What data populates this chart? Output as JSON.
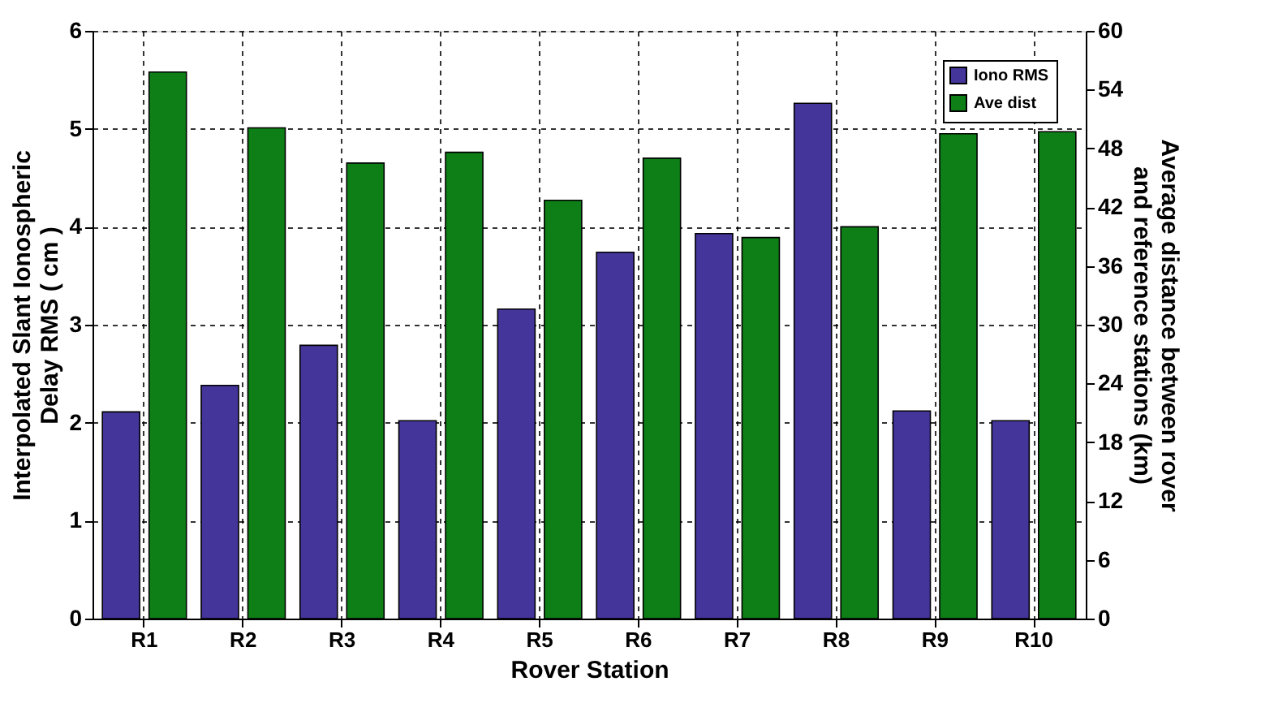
{
  "chart_data": {
    "type": "bar",
    "categories": [
      "R1",
      "R2",
      "R3",
      "R4",
      "R5",
      "R6",
      "R7",
      "R8",
      "R9",
      "R10"
    ],
    "series": [
      {
        "name": "Iono RMS",
        "color": "#44359b",
        "values": [
          2.11,
          2.38,
          2.79,
          2.02,
          3.16,
          3.74,
          3.93,
          5.26,
          2.12,
          2.02
        ]
      },
      {
        "name": "Ave dist",
        "color": "#0e7f17",
        "axis": "y2",
        "values": [
          55.8,
          50.1,
          46.5,
          47.6,
          42.7,
          47.0,
          38.9,
          40.0,
          49.5,
          49.7
        ]
      }
    ],
    "xlabel": "Rover Station",
    "ylabel": "Interpolated Slant Ionospheric Delay RMS ( cm )",
    "y2label": "Average distance between rover and reference stations (km)",
    "ylim": [
      0,
      6
    ],
    "yticks": [
      0,
      1,
      2,
      3,
      4,
      5,
      6
    ],
    "y2lim": [
      0,
      60
    ],
    "y2ticks": [
      0,
      6,
      12,
      18,
      24,
      30,
      36,
      42,
      48,
      54,
      60
    ],
    "grid": true,
    "legend": "top right"
  }
}
